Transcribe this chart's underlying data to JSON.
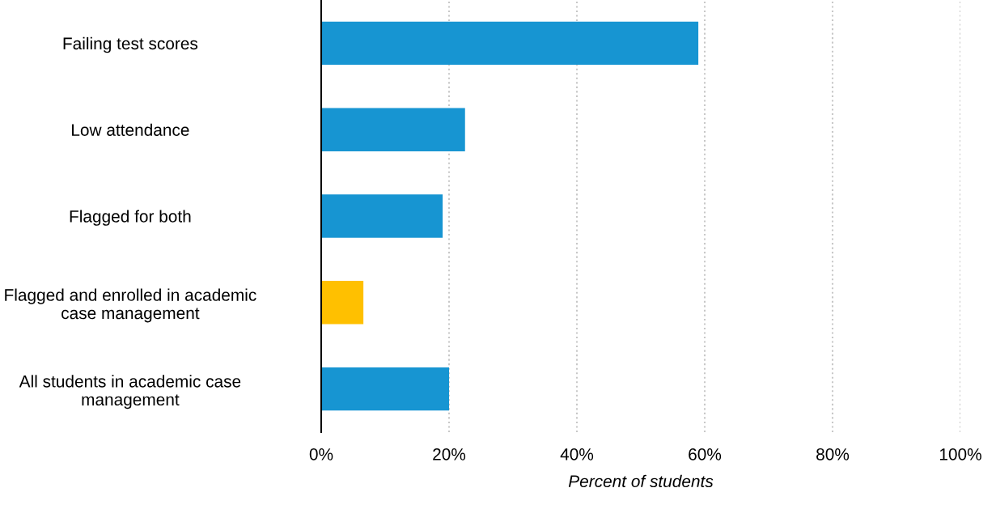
{
  "chart_data": {
    "type": "bar",
    "orientation": "horizontal",
    "xlabel": "Percent of students",
    "categories": [
      "Failing test scores",
      "Low attendance",
      "Flagged for both",
      "Flagged and enrolled in academic\ncase management",
      "All students in academic case\nmanagement"
    ],
    "values": [
      59,
      22.5,
      19,
      6.6,
      20
    ],
    "colors": [
      "#1795d2",
      "#1795d2",
      "#1795d2",
      "#ffc000",
      "#1795d2"
    ],
    "xlim": [
      0,
      100
    ],
    "xticks": [
      {
        "value": 0,
        "label": "0%"
      },
      {
        "value": 20,
        "label": "20%"
      },
      {
        "value": 40,
        "label": "40%"
      },
      {
        "value": 60,
        "label": "60%"
      },
      {
        "value": 80,
        "label": "80%"
      },
      {
        "value": 100,
        "label": "100%"
      }
    ],
    "grid": "x",
    "legend": false
  }
}
